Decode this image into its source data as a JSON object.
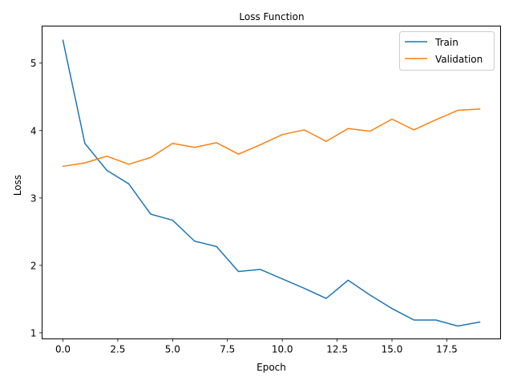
{
  "chart_data": {
    "type": "line",
    "title": "Loss Function",
    "xlabel": "Epoch",
    "ylabel": "Loss",
    "x": [
      0,
      1,
      2,
      3,
      4,
      5,
      6,
      7,
      8,
      9,
      10,
      11,
      12,
      13,
      14,
      15,
      16,
      17,
      18,
      19
    ],
    "xlim": [
      -0.95,
      19.95
    ],
    "ylim": [
      0.91,
      5.55
    ],
    "xticks": [
      0.0,
      2.5,
      5.0,
      7.5,
      10.0,
      12.5,
      15.0,
      17.5
    ],
    "xtick_labels": [
      "0.0",
      "2.5",
      "5.0",
      "7.5",
      "10.0",
      "12.5",
      "15.0",
      "17.5"
    ],
    "yticks": [
      1,
      2,
      3,
      4,
      5
    ],
    "ytick_labels": [
      "1",
      "2",
      "3",
      "4",
      "5"
    ],
    "grid": false,
    "legend_position": "top-right",
    "series": [
      {
        "name": "Train",
        "color": "#1f77b4",
        "values": [
          5.34,
          3.81,
          3.41,
          3.21,
          2.76,
          2.67,
          2.36,
          2.28,
          1.91,
          1.94,
          1.8,
          1.66,
          1.51,
          1.78,
          1.56,
          1.36,
          1.19,
          1.19,
          1.1,
          1.16
        ]
      },
      {
        "name": "Validation",
        "color": "#ff7f0e",
        "values": [
          3.47,
          3.52,
          3.62,
          3.5,
          3.6,
          3.81,
          3.75,
          3.82,
          3.65,
          3.79,
          3.94,
          4.01,
          3.84,
          4.03,
          3.99,
          4.17,
          4.01,
          4.16,
          4.3,
          4.32
        ]
      }
    ]
  }
}
